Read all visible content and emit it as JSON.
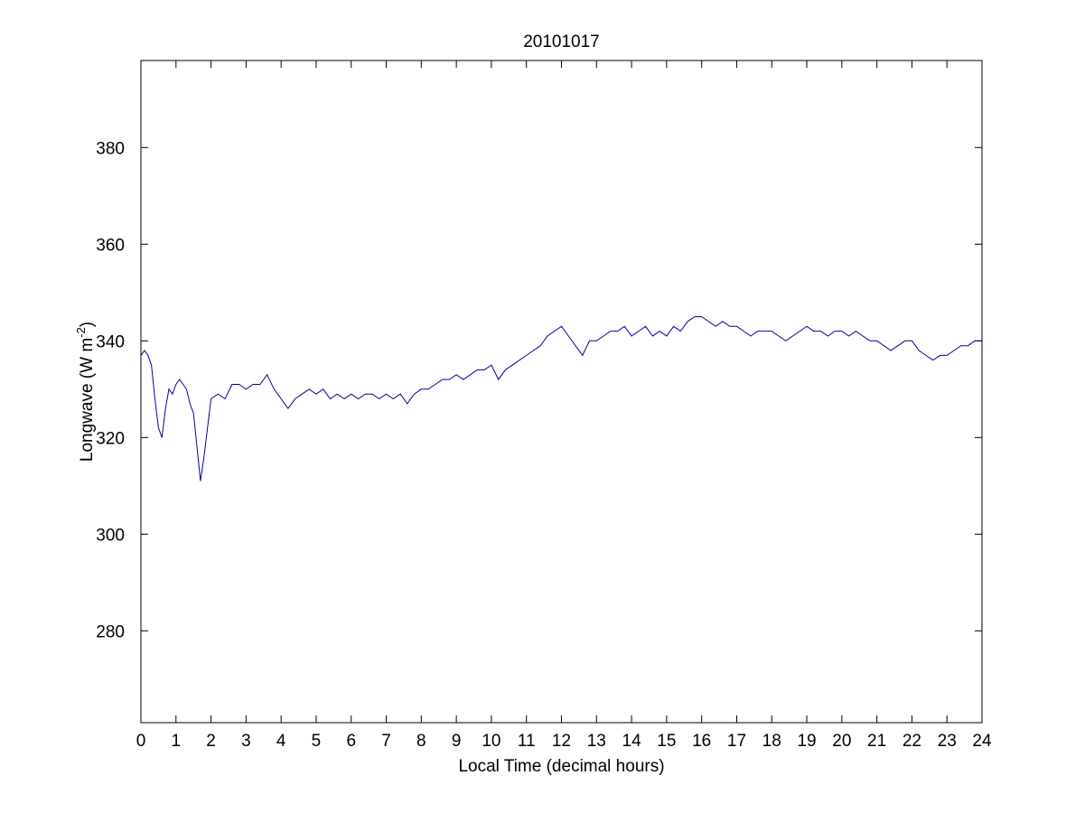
{
  "chart_data": {
    "type": "line",
    "title": "20101017",
    "xlabel": "Local Time (decimal hours)",
    "ylabel": {
      "main": "Longwave (W m",
      "superscript": "-2",
      "close": ")"
    },
    "xlim": [
      0,
      24
    ],
    "ylim": [
      261,
      398
    ],
    "x_ticks": [
      0,
      1,
      2,
      3,
      4,
      5,
      6,
      7,
      8,
      9,
      10,
      11,
      12,
      13,
      14,
      15,
      16,
      17,
      18,
      19,
      20,
      21,
      22,
      23,
      24
    ],
    "y_ticks": [
      280,
      300,
      320,
      340,
      360,
      380
    ],
    "grid": false,
    "line_color": "#0000a0",
    "series": [
      {
        "x": [
          0,
          0.1,
          0.2,
          0.3,
          0.4,
          0.5,
          0.6,
          0.7,
          0.8,
          0.9,
          1.0,
          1.1,
          1.2,
          1.3,
          1.4,
          1.5,
          1.6,
          1.7,
          1.8,
          1.9,
          2.0,
          2.2,
          2.4,
          2.6,
          2.8,
          3.0,
          3.2,
          3.4,
          3.6,
          3.8,
          4.0,
          4.2,
          4.4,
          4.6,
          4.8,
          5.0,
          5.2,
          5.4,
          5.6,
          5.8,
          6.0,
          6.2,
          6.4,
          6.6,
          6.8,
          7.0,
          7.2,
          7.4,
          7.6,
          7.8,
          8.0,
          8.2,
          8.4,
          8.6,
          8.8,
          9.0,
          9.2,
          9.4,
          9.6,
          9.8,
          10.0,
          10.2,
          10.4,
          10.6,
          10.8,
          11.0,
          11.2,
          11.4,
          11.6,
          11.8,
          12.0,
          12.2,
          12.4,
          12.6,
          12.8,
          13.0,
          13.2,
          13.4,
          13.6,
          13.8,
          14.0,
          14.2,
          14.4,
          14.6,
          14.8,
          15.0,
          15.2,
          15.4,
          15.6,
          15.8,
          16.0,
          16.2,
          16.4,
          16.6,
          16.8,
          17.0,
          17.2,
          17.4,
          17.6,
          17.8,
          18.0,
          18.2,
          18.4,
          18.6,
          18.8,
          19.0,
          19.2,
          19.4,
          19.6,
          19.8,
          20.0,
          20.2,
          20.4,
          20.6,
          20.8,
          21.0,
          21.2,
          21.4,
          21.6,
          21.8,
          22.0,
          22.2,
          22.4,
          22.6,
          22.8,
          23.0,
          23.2,
          23.4,
          23.6,
          23.8,
          24.0
        ],
        "y": [
          337,
          338,
          337,
          335,
          328,
          322,
          320,
          326,
          330,
          329,
          331,
          332,
          331,
          330,
          327,
          325,
          318,
          311,
          316,
          322,
          328,
          329,
          328,
          331,
          331,
          330,
          331,
          331,
          333,
          330,
          328,
          326,
          328,
          329,
          330,
          329,
          330,
          328,
          329,
          328,
          329,
          328,
          329,
          329,
          328,
          329,
          328,
          329,
          327,
          329,
          330,
          330,
          331,
          332,
          332,
          333,
          332,
          333,
          334,
          334,
          335,
          332,
          334,
          335,
          336,
          337,
          338,
          339,
          341,
          342,
          343,
          341,
          339,
          337,
          340,
          340,
          341,
          342,
          342,
          343,
          341,
          342,
          343,
          341,
          342,
          341,
          343,
          342,
          344,
          345,
          345,
          344,
          343,
          344,
          343,
          343,
          342,
          341,
          342,
          342,
          342,
          341,
          340,
          341,
          342,
          343,
          342,
          342,
          341,
          342,
          342,
          341,
          342,
          341,
          340,
          340,
          339,
          338,
          339,
          340,
          340,
          338,
          337,
          336,
          337,
          337,
          338,
          339,
          339,
          340,
          340
        ]
      }
    ]
  }
}
